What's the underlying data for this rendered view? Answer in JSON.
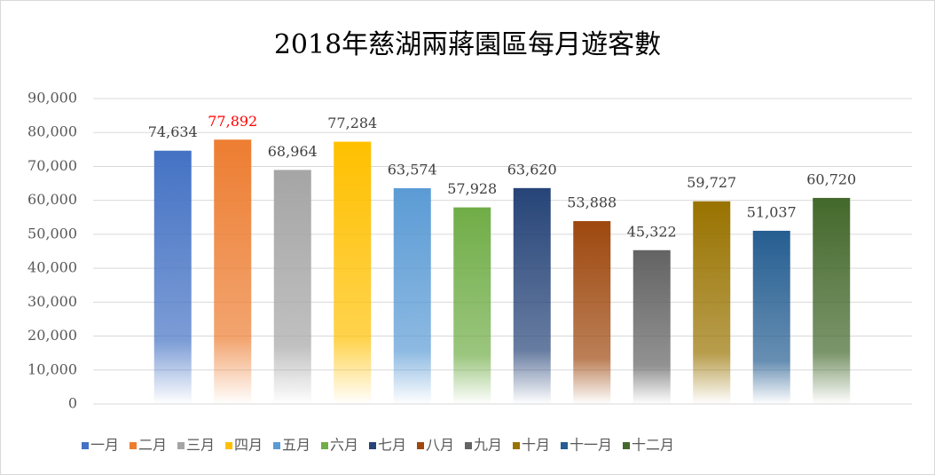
{
  "chart_data": {
    "type": "bar",
    "title": "2018年慈湖兩蔣園區每月遊客數",
    "ylim": [
      0,
      90000
    ],
    "yticks": [
      0,
      {
        "value": 10000,
        "label": "10,000"
      },
      {
        "value": 20000,
        "label": "20,000"
      },
      {
        "value": 30000,
        "label": "30,000"
      },
      {
        "value": 40000,
        "label": "40,000"
      },
      {
        "value": 50000,
        "label": "50,000"
      },
      {
        "value": 60000,
        "label": "60,000"
      },
      {
        "value": 70000,
        "label": "70,000"
      },
      {
        "value": 80000,
        "label": "80,000"
      },
      {
        "value": 90000,
        "label": "90,000"
      }
    ],
    "grid": true,
    "legend": "bottom",
    "series": [
      {
        "name": "一月",
        "color": "#4472c4",
        "label_color": "#404040",
        "values": [
          74634
        ],
        "value_labels": [
          "74,634"
        ]
      },
      {
        "name": "二月",
        "color": "#ed7d31",
        "label_color": "#ff0000",
        "values": [
          77892
        ],
        "value_labels": [
          "77,892"
        ]
      },
      {
        "name": "三月",
        "color": "#a5a5a5",
        "label_color": "#404040",
        "values": [
          68964
        ],
        "value_labels": [
          "68,964"
        ]
      },
      {
        "name": "四月",
        "color": "#ffc000",
        "label_color": "#404040",
        "values": [
          77284
        ],
        "value_labels": [
          "77,284"
        ]
      },
      {
        "name": "五月",
        "color": "#5b9bd5",
        "label_color": "#404040",
        "values": [
          63574
        ],
        "value_labels": [
          "63,574"
        ]
      },
      {
        "name": "六月",
        "color": "#70ad47",
        "label_color": "#404040",
        "values": [
          57928
        ],
        "value_labels": [
          "57,928"
        ]
      },
      {
        "name": "七月",
        "color": "#264478",
        "label_color": "#404040",
        "values": [
          63620
        ],
        "value_labels": [
          "63,620"
        ]
      },
      {
        "name": "八月",
        "color": "#9e480e",
        "label_color": "#404040",
        "values": [
          53888
        ],
        "value_labels": [
          "53,888"
        ]
      },
      {
        "name": "九月",
        "color": "#636363",
        "label_color": "#404040",
        "values": [
          45322
        ],
        "value_labels": [
          "45,322"
        ]
      },
      {
        "name": "十月",
        "color": "#997300",
        "label_color": "#404040",
        "values": [
          59727
        ],
        "value_labels": [
          "59,727"
        ]
      },
      {
        "name": "十一月",
        "color": "#255e91",
        "label_color": "#404040",
        "values": [
          51037
        ],
        "value_labels": [
          "51,037"
        ]
      },
      {
        "name": "十二月",
        "color": "#43682b",
        "label_color": "#404040",
        "values": [
          60720
        ],
        "value_labels": [
          "60,720"
        ]
      }
    ]
  }
}
